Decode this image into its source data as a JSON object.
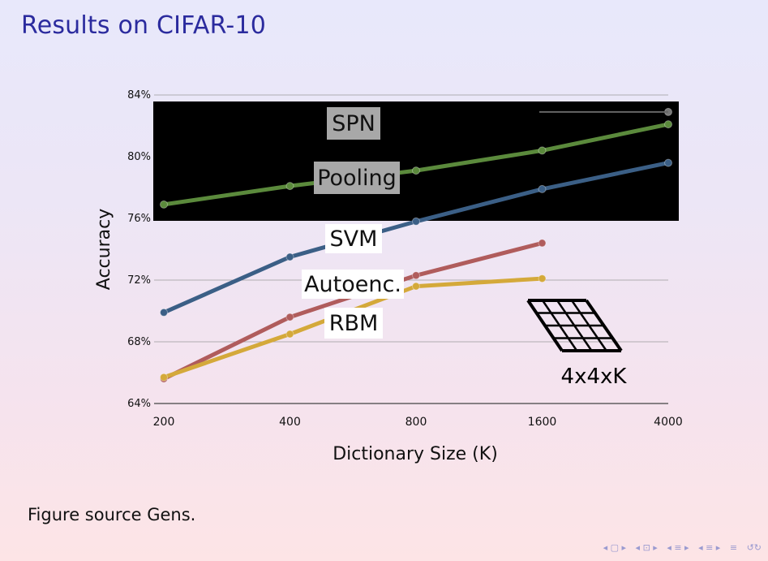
{
  "slide": {
    "title": "Results on CIFAR-10",
    "caption": "Figure source Gens."
  },
  "nav": {
    "icons": [
      "nav-frame-prev",
      "nav-frame-next",
      "nav-subsection",
      "nav-section",
      "nav-align",
      "nav-search"
    ],
    "glyphs": [
      "◂ ▢ ▸",
      "◂ ⊡ ▸",
      "◂ ≡ ▸",
      "◂ ≡ ▸",
      "≡",
      "↺↻"
    ]
  },
  "chart_data": {
    "type": "line",
    "xlabel": "Dictionary Size (K)",
    "ylabel": "Accuracy",
    "categories": [
      "200",
      "400",
      "800",
      "1600",
      "4000"
    ],
    "y_ticks": [
      "64%",
      "68%",
      "72%",
      "76%",
      "80%",
      "84%"
    ],
    "ylim": [
      64,
      84
    ],
    "grid": true,
    "series": [
      {
        "name": "SPN",
        "color": "#777777",
        "values": [
          null,
          null,
          null,
          null,
          82.9
        ]
      },
      {
        "name": "Pooling",
        "color": "#5b8a3c",
        "values": [
          76.9,
          78.1,
          79.1,
          80.4,
          82.1
        ]
      },
      {
        "name": "SVM",
        "color": "#3b5f86",
        "values": [
          69.9,
          73.5,
          75.8,
          77.9,
          79.6
        ]
      },
      {
        "name": "Autoenc.",
        "color": "#b05c5c",
        "values": [
          65.6,
          69.6,
          72.3,
          74.4,
          null
        ]
      },
      {
        "name": "RBM",
        "color": "#d4a93a",
        "values": [
          65.7,
          68.5,
          71.6,
          72.1,
          null
        ]
      }
    ],
    "annotations": {
      "spn": "SPN",
      "pooling": "Pooling",
      "svm": "SVM",
      "autoenc": "Autoenc.",
      "rbm": "RBM",
      "grid_caption": "4x4xK"
    }
  }
}
